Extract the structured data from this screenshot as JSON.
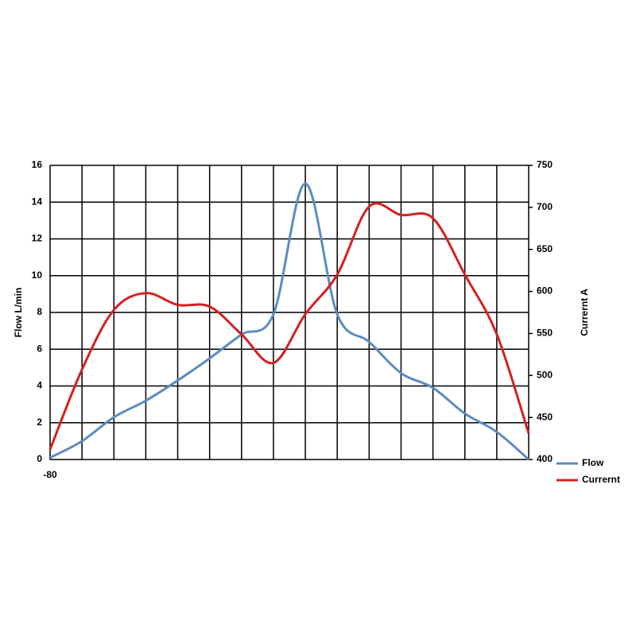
{
  "chart_data": {
    "type": "line",
    "y_label": "Flow  L/min",
    "y2_label": "Currernt A",
    "categories": [
      "-80",
      null,
      null,
      null,
      null,
      null,
      null,
      null,
      null,
      null,
      null,
      null,
      null,
      null,
      null,
      null
    ],
    "series": [
      {
        "name": "Flow",
        "color": "#5b8cc0",
        "values": [
          0.1,
          1.0,
          2.3,
          3.2,
          4.3,
          5.5,
          6.8,
          7.9,
          15.0,
          7.9,
          6.4,
          4.7,
          3.9,
          2.5,
          1.5,
          0.0
        ]
      },
      {
        "name": "Currernt",
        "color": "#d42020",
        "axis": "y2",
        "values": [
          412,
          507,
          578,
          598,
          584,
          582,
          549,
          515,
          573,
          620,
          701,
          691,
          687,
          620,
          549,
          431
        ]
      }
    ],
    "ylim": [
      0,
      16
    ],
    "yticks": [
      0,
      2,
      4,
      6,
      8,
      10,
      12,
      14,
      16
    ],
    "y2lim": [
      400,
      750
    ],
    "y2ticks": [
      400,
      450,
      500,
      550,
      600,
      650,
      700,
      750
    ],
    "grid": true,
    "legend": "bottom-right",
    "smooth": true
  }
}
